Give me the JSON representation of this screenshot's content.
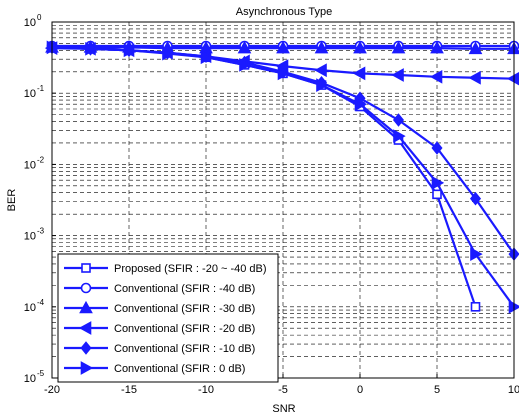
{
  "chart_data": {
    "type": "line",
    "title": "Asynchronous Type",
    "xlabel": "SNR",
    "ylabel": "BER",
    "x_scale": "linear",
    "y_scale": "log",
    "xlim": [
      -20,
      10
    ],
    "ylim": [
      1e-05,
      1
    ],
    "x_ticks": [
      -20,
      -15,
      -10,
      -5,
      0,
      5,
      10
    ],
    "x_tick_labels": [
      "-20",
      "-15",
      "-10",
      "-5",
      "0",
      "5",
      "10"
    ],
    "y_ticks": [
      1e-05,
      0.0001,
      0.001,
      0.01,
      0.1,
      1
    ],
    "y_tick_bases": [
      "10",
      "10",
      "10",
      "10",
      "10",
      "10"
    ],
    "y_tick_exponents": [
      "-5",
      "-4",
      "-3",
      "-2",
      "-1",
      "0"
    ],
    "grid": true,
    "legend_position": "bottom-left",
    "line_color": "#1a1aff",
    "x": [
      -20,
      -17.5,
      -15,
      -12.5,
      -10,
      -7.5,
      -5,
      -2.5,
      0,
      2.5,
      5,
      7.5,
      10
    ],
    "series": [
      {
        "name": "Proposed (SFIR : -20 ~ -40 dB)",
        "marker": "square",
        "values": [
          0.44,
          0.42,
          0.4,
          0.37,
          0.32,
          0.25,
          0.19,
          0.13,
          0.065,
          0.022,
          0.0038,
          0.0001,
          null
        ]
      },
      {
        "name": "Conventional (SFIR : -40 dB)",
        "marker": "circle",
        "values": [
          0.46,
          0.46,
          0.46,
          0.46,
          0.46,
          0.46,
          0.46,
          0.46,
          0.46,
          0.46,
          0.46,
          0.46,
          0.46
        ]
      },
      {
        "name": "Conventional (SFIR : -30 dB)",
        "marker": "triangle-up",
        "values": [
          0.44,
          0.44,
          0.44,
          0.43,
          0.43,
          0.43,
          0.43,
          0.43,
          0.43,
          0.43,
          0.43,
          0.42,
          0.42
        ]
      },
      {
        "name": "Conventional (SFIR : -20 dB)",
        "marker": "triangle-left",
        "values": [
          0.43,
          0.42,
          0.4,
          0.37,
          0.33,
          0.28,
          0.24,
          0.21,
          0.19,
          0.18,
          0.17,
          0.165,
          0.16
        ]
      },
      {
        "name": "Conventional (SFIR : -10 dB)",
        "marker": "diamond",
        "values": [
          0.44,
          0.42,
          0.4,
          0.37,
          0.33,
          0.27,
          0.2,
          0.14,
          0.085,
          0.042,
          0.017,
          0.0033,
          0.00055
        ]
      },
      {
        "name": "Conventional (SFIR : 0 dB)",
        "marker": "triangle-right",
        "values": [
          0.44,
          0.42,
          0.4,
          0.36,
          0.32,
          0.25,
          0.19,
          0.13,
          0.07,
          0.025,
          0.0055,
          0.00055,
          0.0001
        ]
      }
    ]
  }
}
